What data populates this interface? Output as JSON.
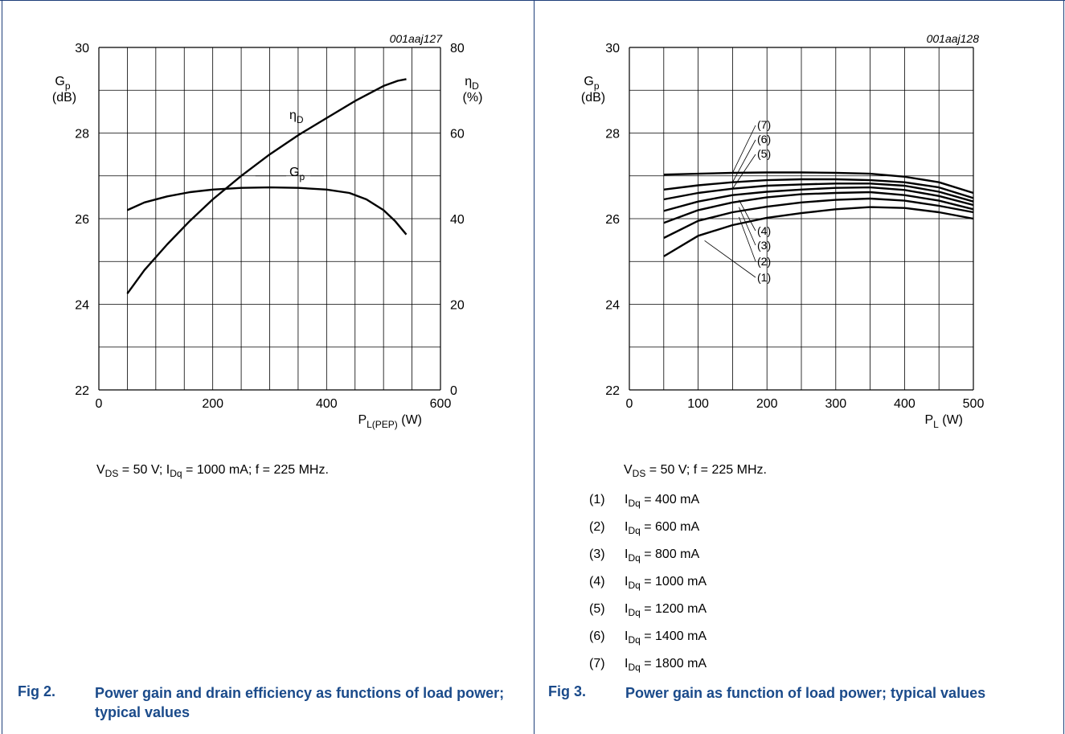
{
  "figures": [
    {
      "code": "001aaj127",
      "fig_label": "Fig 2.",
      "title": "Power gain and drain efficiency as functions of load power; typical values",
      "conditions": {
        "vds_label": "V",
        "vds_sub": "DS",
        "vds_val": " = 50 V; ",
        "idq_label": "I",
        "idq_sub": "Dq",
        "idq_val": " = 1000 mA; f = 225 MHz."
      },
      "y_left": {
        "sym": "G",
        "sub": "p",
        "unit": "(dB)"
      },
      "y_right": {
        "sym": "η",
        "sub": "D",
        "unit": "(%)"
      },
      "x_axis": {
        "sym": "P",
        "sub": "L(PEP)",
        "unit": " (W)"
      },
      "curve_labels": {
        "eta": "η",
        "eta_sub": "D",
        "gp": "G",
        "gp_sub": "p"
      }
    },
    {
      "code": "001aaj128",
      "fig_label": "Fig 3.",
      "title": "Power gain as function of load power; typical values",
      "conditions": {
        "vds_label": "V",
        "vds_sub": "DS",
        "vds_val": " = 50 V; f = 225 MHz."
      },
      "y_left": {
        "sym": "G",
        "sub": "p",
        "unit": "(dB)"
      },
      "x_axis": {
        "sym": "P",
        "sub": "L",
        "unit": " (W)"
      },
      "legend": [
        {
          "num": "(1)",
          "sym": "I",
          "sub": "Dq",
          "val": " = 400 mA"
        },
        {
          "num": "(2)",
          "sym": "I",
          "sub": "Dq",
          "val": " = 600 mA"
        },
        {
          "num": "(3)",
          "sym": "I",
          "sub": "Dq",
          "val": " = 800 mA"
        },
        {
          "num": "(4)",
          "sym": "I",
          "sub": "Dq",
          "val": " = 1000 mA"
        },
        {
          "num": "(5)",
          "sym": "I",
          "sub": "Dq",
          "val": " = 1200 mA"
        },
        {
          "num": "(6)",
          "sym": "I",
          "sub": "Dq",
          "val": " = 1400 mA"
        },
        {
          "num": "(7)",
          "sym": "I",
          "sub": "Dq",
          "val": " = 1800 mA"
        }
      ]
    }
  ],
  "chart_data": [
    {
      "type": "line",
      "xlim": [
        0,
        600
      ],
      "xticks": [
        0,
        200,
        400,
        600
      ],
      "ylim_left": [
        22,
        30
      ],
      "yticks_left": [
        22,
        24,
        26,
        28,
        30
      ],
      "ylim_right": [
        0,
        80
      ],
      "yticks_right": [
        0,
        20,
        40,
        60,
        80
      ],
      "grid": true,
      "series": [
        {
          "axis": "left",
          "points": [
            [
              50,
              26.2
            ],
            [
              80,
              26.38
            ],
            [
              120,
              26.52
            ],
            [
              160,
              26.62
            ],
            [
              200,
              26.68
            ],
            [
              250,
              26.72
            ],
            [
              300,
              26.73
            ],
            [
              350,
              26.72
            ],
            [
              400,
              26.68
            ],
            [
              440,
              26.6
            ],
            [
              470,
              26.45
            ],
            [
              500,
              26.2
            ],
            [
              520,
              25.95
            ],
            [
              540,
              25.63
            ]
          ]
        },
        {
          "axis": "right",
          "points": [
            [
              50,
              22.5
            ],
            [
              80,
              28
            ],
            [
              120,
              34
            ],
            [
              160,
              39.5
            ],
            [
              200,
              44.5
            ],
            [
              250,
              50
            ],
            [
              300,
              55
            ],
            [
              350,
              59.5
            ],
            [
              400,
              63.5
            ],
            [
              450,
              67.5
            ],
            [
              500,
              71
            ],
            [
              525,
              72.2
            ],
            [
              540,
              72.6
            ]
          ]
        }
      ]
    },
    {
      "type": "line",
      "xlim": [
        0,
        500
      ],
      "xticks": [
        0,
        100,
        200,
        300,
        400,
        500
      ],
      "ylim": [
        22,
        30
      ],
      "yticks": [
        22,
        24,
        26,
        28,
        30
      ],
      "grid": true,
      "series": [
        {
          "name": "(1)",
          "points": [
            [
              50,
              25.12
            ],
            [
              100,
              25.6
            ],
            [
              150,
              25.85
            ],
            [
              200,
              26.02
            ],
            [
              250,
              26.13
            ],
            [
              300,
              26.22
            ],
            [
              350,
              26.27
            ],
            [
              400,
              26.25
            ],
            [
              450,
              26.15
            ],
            [
              500,
              26.0
            ]
          ]
        },
        {
          "name": "(2)",
          "points": [
            [
              50,
              25.55
            ],
            [
              100,
              25.95
            ],
            [
              150,
              26.15
            ],
            [
              200,
              26.28
            ],
            [
              250,
              26.38
            ],
            [
              300,
              26.44
            ],
            [
              350,
              26.47
            ],
            [
              400,
              26.42
            ],
            [
              450,
              26.3
            ],
            [
              500,
              26.15
            ]
          ]
        },
        {
          "name": "(3)",
          "points": [
            [
              50,
              25.9
            ],
            [
              100,
              26.2
            ],
            [
              150,
              26.38
            ],
            [
              200,
              26.5
            ],
            [
              250,
              26.57
            ],
            [
              300,
              26.6
            ],
            [
              350,
              26.62
            ],
            [
              400,
              26.55
            ],
            [
              450,
              26.42
            ],
            [
              500,
              26.22
            ]
          ]
        },
        {
          "name": "(4)",
          "points": [
            [
              50,
              26.18
            ],
            [
              100,
              26.4
            ],
            [
              150,
              26.55
            ],
            [
              200,
              26.63
            ],
            [
              250,
              26.68
            ],
            [
              300,
              26.72
            ],
            [
              350,
              26.73
            ],
            [
              400,
              26.67
            ],
            [
              450,
              26.53
            ],
            [
              500,
              26.32
            ]
          ]
        },
        {
          "name": "(5)",
          "points": [
            [
              50,
              26.45
            ],
            [
              100,
              26.6
            ],
            [
              150,
              26.7
            ],
            [
              200,
              26.77
            ],
            [
              250,
              26.8
            ],
            [
              300,
              26.82
            ],
            [
              350,
              26.82
            ],
            [
              400,
              26.77
            ],
            [
              450,
              26.63
            ],
            [
              500,
              26.4
            ]
          ]
        },
        {
          "name": "(6)",
          "points": [
            [
              50,
              26.68
            ],
            [
              100,
              26.78
            ],
            [
              150,
              26.85
            ],
            [
              200,
              26.9
            ],
            [
              250,
              26.92
            ],
            [
              300,
              26.92
            ],
            [
              350,
              26.9
            ],
            [
              400,
              26.85
            ],
            [
              450,
              26.73
            ],
            [
              500,
              26.48
            ]
          ]
        },
        {
          "name": "(7)",
          "points": [
            [
              50,
              27.03
            ],
            [
              100,
              27.05
            ],
            [
              150,
              27.07
            ],
            [
              200,
              27.08
            ],
            [
              250,
              27.08
            ],
            [
              300,
              27.07
            ],
            [
              350,
              27.05
            ],
            [
              400,
              26.98
            ],
            [
              450,
              26.85
            ],
            [
              500,
              26.6
            ]
          ]
        }
      ]
    }
  ]
}
